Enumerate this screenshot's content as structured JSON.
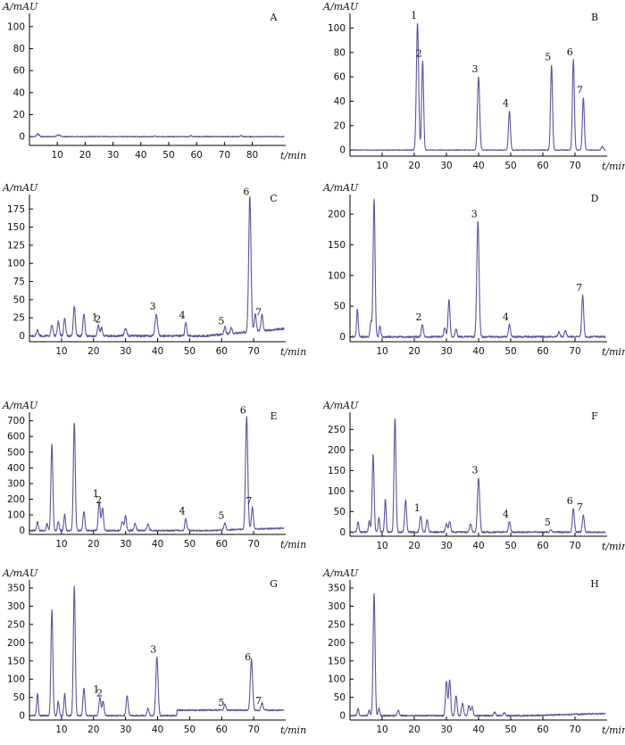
{
  "figure": {
    "trace_color": "#5a55a0",
    "y_unit_label": "A/mAU",
    "x_unit_label": "t/min"
  },
  "chart_data": [
    {
      "panel": "A",
      "type": "line",
      "xlim": [
        0,
        92
      ],
      "ylim": [
        -8,
        112
      ],
      "xticks": [
        10,
        20,
        30,
        40,
        50,
        60,
        70,
        80
      ],
      "yticks": [
        0,
        20,
        40,
        60,
        80,
        100
      ],
      "baseline_noise": 0.4,
      "baseline_drift": 0,
      "peaks": [
        [
          2.8,
          3,
          0.25
        ],
        [
          3.5,
          2,
          0.2
        ],
        [
          10.5,
          1.5,
          0.6
        ],
        [
          45,
          0.6,
          0.3
        ],
        [
          58,
          0.8,
          0.3
        ],
        [
          76,
          0.9,
          0.3
        ]
      ],
      "peak_labels": []
    },
    {
      "panel": "B",
      "type": "line",
      "xlim": [
        0,
        80
      ],
      "ylim": [
        -5,
        112
      ],
      "xticks": [
        10,
        20,
        30,
        40,
        50,
        60,
        70
      ],
      "yticks": [
        0,
        20,
        40,
        60,
        80,
        100
      ],
      "baseline_noise": 0.3,
      "baseline_drift": 0,
      "peaks": [
        [
          21.0,
          104,
          0.35
        ],
        [
          22.6,
          73,
          0.3
        ],
        [
          40.0,
          60,
          0.35
        ],
        [
          49.6,
          32,
          0.3
        ],
        [
          62.7,
          70,
          0.3
        ],
        [
          69.5,
          74,
          0.3
        ],
        [
          72.6,
          43,
          0.3
        ],
        [
          78.5,
          3,
          0.3
        ]
      ],
      "peak_labels": [
        {
          "text": "1",
          "x": 21.0,
          "y": 104
        },
        {
          "text": "2",
          "x": 22.6,
          "y": 73
        },
        {
          "text": "3",
          "x": 40.0,
          "y": 60
        },
        {
          "text": "4",
          "x": 49.6,
          "y": 32
        },
        {
          "text": "5",
          "x": 62.7,
          "y": 70
        },
        {
          "text": "6",
          "x": 69.5,
          "y": 74
        },
        {
          "text": "7",
          "x": 72.6,
          "y": 43
        }
      ]
    },
    {
      "panel": "C",
      "type": "line",
      "xlim": [
        0,
        80
      ],
      "ylim": [
        -8,
        195
      ],
      "xticks": [
        10,
        20,
        30,
        40,
        50,
        60,
        70
      ],
      "yticks": [
        0,
        25,
        50,
        75,
        100,
        125,
        150,
        175
      ],
      "baseline_noise": 1.5,
      "baseline_drift": 10,
      "peaks": [
        [
          2.5,
          8,
          0.3
        ],
        [
          7.0,
          15,
          0.3
        ],
        [
          9.0,
          20,
          0.3
        ],
        [
          11.0,
          25,
          0.3
        ],
        [
          14.0,
          42,
          0.3
        ],
        [
          17.0,
          30,
          0.3
        ],
        [
          21.5,
          15,
          0.3
        ],
        [
          22.5,
          12,
          0.3
        ],
        [
          30.0,
          10,
          0.4
        ],
        [
          39.6,
          30,
          0.4
        ],
        [
          48.8,
          18,
          0.3
        ],
        [
          61.0,
          10,
          0.3
        ],
        [
          63.0,
          8,
          0.3
        ],
        [
          68.8,
          188,
          0.35
        ],
        [
          70.5,
          25,
          0.3
        ],
        [
          72.6,
          22,
          0.3
        ]
      ],
      "peak_labels": [
        {
          "text": "1",
          "x": 21.5,
          "y": 15
        },
        {
          "text": "2",
          "x": 22.5,
          "y": 12
        },
        {
          "text": "3",
          "x": 39.6,
          "y": 30
        },
        {
          "text": "4",
          "x": 48.8,
          "y": 18
        },
        {
          "text": "5",
          "x": 61.0,
          "y": 10
        },
        {
          "text": "6",
          "x": 68.8,
          "y": 188
        },
        {
          "text": "7",
          "x": 72.6,
          "y": 22
        }
      ]
    },
    {
      "panel": "D",
      "type": "line",
      "xlim": [
        0,
        80
      ],
      "ylim": [
        -8,
        232
      ],
      "xticks": [
        10,
        20,
        30,
        40,
        50,
        60,
        70
      ],
      "yticks": [
        0,
        50,
        100,
        150,
        200
      ],
      "baseline_noise": 1.5,
      "baseline_drift": 0,
      "peaks": [
        [
          2.3,
          45,
          0.25
        ],
        [
          6.5,
          25,
          0.25
        ],
        [
          7.5,
          225,
          0.3
        ],
        [
          9.3,
          18,
          0.25
        ],
        [
          22.5,
          20,
          0.3
        ],
        [
          29.5,
          15,
          0.3
        ],
        [
          30.8,
          60,
          0.3
        ],
        [
          33.0,
          12,
          0.3
        ],
        [
          39.8,
          188,
          0.35
        ],
        [
          49.6,
          20,
          0.3
        ],
        [
          65.0,
          8,
          0.3
        ],
        [
          67.0,
          10,
          0.3
        ],
        [
          72.4,
          68,
          0.3
        ]
      ],
      "peak_labels": [
        {
          "text": "2",
          "x": 22.5,
          "y": 20
        },
        {
          "text": "3",
          "x": 39.8,
          "y": 188
        },
        {
          "text": "4",
          "x": 49.6,
          "y": 20
        },
        {
          "text": "7",
          "x": 72.4,
          "y": 68
        }
      ]
    },
    {
      "panel": "E",
      "type": "line",
      "xlim": [
        0,
        80
      ],
      "ylim": [
        -25,
        755
      ],
      "xticks": [
        10,
        20,
        30,
        40,
        50,
        60,
        70
      ],
      "yticks": [
        0,
        100,
        200,
        300,
        400,
        500,
        600,
        700
      ],
      "baseline_noise": 5,
      "baseline_drift": 15,
      "peaks": [
        [
          2.5,
          60,
          0.25
        ],
        [
          5.5,
          45,
          0.25
        ],
        [
          7.0,
          550,
          0.3
        ],
        [
          9.0,
          60,
          0.25
        ],
        [
          11.0,
          105,
          0.25
        ],
        [
          14.0,
          690,
          0.3
        ],
        [
          17.0,
          120,
          0.3
        ],
        [
          21.8,
          185,
          0.3
        ],
        [
          22.8,
          145,
          0.3
        ],
        [
          29.0,
          60,
          0.3
        ],
        [
          30.0,
          95,
          0.3
        ],
        [
          33.0,
          45,
          0.3
        ],
        [
          37.0,
          40,
          0.3
        ],
        [
          48.8,
          75,
          0.3
        ],
        [
          61.0,
          45,
          0.3
        ],
        [
          67.8,
          718,
          0.35
        ],
        [
          69.6,
          140,
          0.3
        ]
      ],
      "peak_labels": [
        {
          "text": "1",
          "x": 21.8,
          "y": 185
        },
        {
          "text": "2",
          "x": 22.8,
          "y": 145
        },
        {
          "text": "4",
          "x": 48.8,
          "y": 75
        },
        {
          "text": "5",
          "x": 61.0,
          "y": 45
        },
        {
          "text": "6",
          "x": 67.8,
          "y": 718
        },
        {
          "text": "7",
          "x": 69.6,
          "y": 140
        }
      ]
    },
    {
      "panel": "F",
      "type": "line",
      "xlim": [
        0,
        80
      ],
      "ylim": [
        -10,
        292
      ],
      "xticks": [
        10,
        20,
        30,
        40,
        50,
        60,
        70
      ],
      "yticks": [
        0,
        50,
        100,
        150,
        200,
        250
      ],
      "baseline_noise": 2,
      "baseline_drift": 0,
      "peaks": [
        [
          2.5,
          25,
          0.25
        ],
        [
          6.0,
          28,
          0.25
        ],
        [
          7.2,
          188,
          0.3
        ],
        [
          9.0,
          35,
          0.25
        ],
        [
          11.0,
          80,
          0.25
        ],
        [
          14.0,
          278,
          0.3
        ],
        [
          17.3,
          78,
          0.3
        ],
        [
          22.0,
          40,
          0.3
        ],
        [
          24.0,
          30,
          0.3
        ],
        [
          30.0,
          20,
          0.3
        ],
        [
          31.0,
          25,
          0.3
        ],
        [
          37.5,
          20,
          0.3
        ],
        [
          40.0,
          132,
          0.35
        ],
        [
          49.6,
          25,
          0.3
        ],
        [
          62.6,
          5,
          0.3
        ],
        [
          69.5,
          57,
          0.3
        ],
        [
          72.6,
          42,
          0.3
        ]
      ],
      "peak_labels": [
        {
          "text": "1",
          "x": 22.0,
          "y": 40
        },
        {
          "text": "3",
          "x": 40.0,
          "y": 132
        },
        {
          "text": "4",
          "x": 49.6,
          "y": 25
        },
        {
          "text": "5",
          "x": 62.6,
          "y": 5
        },
        {
          "text": "6",
          "x": 69.5,
          "y": 57
        },
        {
          "text": "7",
          "x": 72.6,
          "y": 42
        }
      ]
    },
    {
      "panel": "G",
      "type": "line",
      "xlim": [
        0,
        80
      ],
      "ylim": [
        -12,
        372
      ],
      "xticks": [
        10,
        20,
        30,
        40,
        50,
        60,
        70
      ],
      "yticks": [
        0,
        50,
        100,
        150,
        200,
        250,
        300,
        350
      ],
      "baseline_noise": 2,
      "baseline_drift": 0,
      "step_level": 15,
      "step_at": 46,
      "peaks": [
        [
          2.5,
          60,
          0.25
        ],
        [
          7.0,
          290,
          0.3
        ],
        [
          9.0,
          40,
          0.25
        ],
        [
          11.0,
          60,
          0.25
        ],
        [
          14.0,
          355,
          0.3
        ],
        [
          17.0,
          75,
          0.3
        ],
        [
          22.0,
          50,
          0.3
        ],
        [
          23.0,
          40,
          0.3
        ],
        [
          30.5,
          55,
          0.3
        ],
        [
          37.0,
          20,
          0.3
        ],
        [
          39.8,
          160,
          0.35
        ],
        [
          61.0,
          15,
          0.3
        ],
        [
          69.3,
          140,
          0.35
        ],
        [
          72.6,
          20,
          0.3
        ]
      ],
      "peak_labels": [
        {
          "text": "1",
          "x": 22.0,
          "y": 50
        },
        {
          "text": "2",
          "x": 23.0,
          "y": 40
        },
        {
          "text": "3",
          "x": 39.8,
          "y": 160
        },
        {
          "text": "5",
          "x": 61.0,
          "y": 15
        },
        {
          "text": "6",
          "x": 69.3,
          "y": 140
        },
        {
          "text": "7",
          "x": 72.6,
          "y": 20
        }
      ]
    },
    {
      "panel": "H",
      "type": "line",
      "xlim": [
        0,
        80
      ],
      "ylim": [
        -12,
        372
      ],
      "xticks": [
        10,
        20,
        30,
        40,
        50,
        60,
        70
      ],
      "yticks": [
        0,
        50,
        100,
        150,
        200,
        250,
        300,
        350
      ],
      "baseline_noise": 2,
      "baseline_drift": 6,
      "peaks": [
        [
          2.5,
          20,
          0.25
        ],
        [
          6.0,
          15,
          0.25
        ],
        [
          7.5,
          335,
          0.3
        ],
        [
          9.0,
          20,
          0.25
        ],
        [
          15.0,
          15,
          0.3
        ],
        [
          30.0,
          95,
          0.3
        ],
        [
          31.0,
          98,
          0.3
        ],
        [
          33.0,
          55,
          0.3
        ],
        [
          35.0,
          35,
          0.3
        ],
        [
          37.0,
          28,
          0.3
        ],
        [
          38.0,
          25,
          0.3
        ],
        [
          45.0,
          10,
          0.3
        ],
        [
          48.0,
          8,
          0.3
        ]
      ],
      "peak_labels": []
    }
  ]
}
